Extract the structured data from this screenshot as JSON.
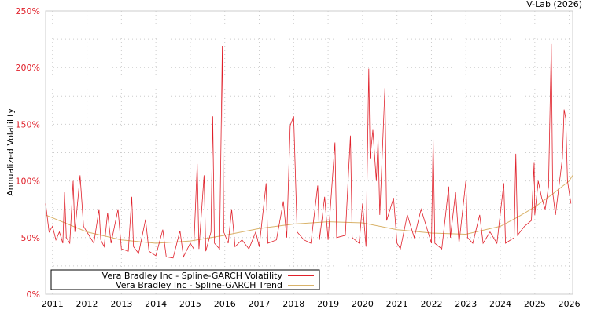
{
  "credit": "V-Lab (2026)",
  "chart_data": {
    "type": "line",
    "title": "",
    "xlabel": "",
    "ylabel": "Annualized Volatility",
    "xlim": [
      2010.8,
      2026.1
    ],
    "ylim": [
      0,
      250
    ],
    "grid": true,
    "legend_placement": "bottom-left",
    "x_ticks": [
      2011,
      2012,
      2013,
      2014,
      2015,
      2016,
      2017,
      2018,
      2019,
      2020,
      2021,
      2022,
      2023,
      2024,
      2025,
      2026
    ],
    "x_tick_labels": [
      "2011",
      "2012",
      "2013",
      "2014",
      "2015",
      "2016",
      "2017",
      "2018",
      "2019",
      "2020",
      "2021",
      "2022",
      "2023",
      "2024",
      "2025",
      "2026"
    ],
    "y_ticks": [
      0,
      50,
      100,
      150,
      200,
      250
    ],
    "y_tick_labels": [
      "0%",
      "50%",
      "100%",
      "150%",
      "200%",
      "250%"
    ],
    "series": [
      {
        "name": "Vera Bradley Inc - Spline-GARCH Volatility",
        "color": "#e0202a",
        "x": [
          2010.8,
          2010.9,
          2011.0,
          2011.1,
          2011.2,
          2011.3,
          2011.35,
          2011.4,
          2011.5,
          2011.6,
          2011.65,
          2011.75,
          2011.8,
          2011.9,
          2012.0,
          2012.1,
          2012.2,
          2012.35,
          2012.4,
          2012.5,
          2012.6,
          2012.7,
          2012.9,
          2013.0,
          2013.2,
          2013.3,
          2013.35,
          2013.5,
          2013.7,
          2013.8,
          2014.0,
          2014.2,
          2014.3,
          2014.5,
          2014.7,
          2014.8,
          2015.0,
          2015.1,
          2015.2,
          2015.25,
          2015.4,
          2015.45,
          2015.6,
          2015.65,
          2015.7,
          2015.85,
          2015.93,
          2015.97,
          2016.1,
          2016.2,
          2016.3,
          2016.5,
          2016.7,
          2016.9,
          2017.0,
          2017.2,
          2017.25,
          2017.5,
          2017.7,
          2017.8,
          2017.9,
          2018.0,
          2018.1,
          2018.3,
          2018.5,
          2018.7,
          2018.75,
          2018.9,
          2019.0,
          2019.2,
          2019.25,
          2019.5,
          2019.65,
          2019.7,
          2019.9,
          2020.0,
          2020.1,
          2020.18,
          2020.22,
          2020.3,
          2020.4,
          2020.45,
          2020.5,
          2020.65,
          2020.7,
          2020.9,
          2021.0,
          2021.1,
          2021.3,
          2021.5,
          2021.7,
          2021.9,
          2022.0,
          2022.05,
          2022.1,
          2022.3,
          2022.5,
          2022.55,
          2022.7,
          2022.8,
          2023.0,
          2023.05,
          2023.2,
          2023.4,
          2023.5,
          2023.7,
          2023.9,
          2024.1,
          2024.15,
          2024.4,
          2024.45,
          2024.5,
          2024.7,
          2024.9,
          2024.98,
          2025.0,
          2025.1,
          2025.2,
          2025.3,
          2025.4,
          2025.48,
          2025.52,
          2025.6,
          2025.8,
          2025.85,
          2025.9,
          2025.95,
          2026.0,
          2026.05
        ],
        "values": [
          80,
          55,
          60,
          48,
          55,
          45,
          90,
          50,
          45,
          100,
          55,
          88,
          105,
          60,
          55,
          50,
          45,
          75,
          48,
          42,
          72,
          45,
          75,
          40,
          38,
          86,
          42,
          36,
          66,
          38,
          34,
          57,
          33,
          32,
          56,
          33,
          45,
          40,
          115,
          40,
          105,
          38,
          55,
          157,
          45,
          40,
          219,
          55,
          45,
          75,
          42,
          48,
          40,
          55,
          42,
          98,
          45,
          48,
          82,
          50,
          149,
          157,
          55,
          48,
          45,
          96,
          48,
          86,
          48,
          134,
          50,
          52,
          140,
          50,
          45,
          80,
          42,
          199,
          120,
          145,
          100,
          137,
          70,
          182,
          65,
          85,
          45,
          40,
          70,
          50,
          75,
          55,
          45,
          137,
          45,
          40,
          95,
          50,
          90,
          45,
          100,
          50,
          45,
          70,
          45,
          55,
          45,
          98,
          45,
          50,
          124,
          52,
          60,
          65,
          116,
          70,
          100,
          85,
          75,
          95,
          221,
          90,
          70,
          120,
          163,
          155,
          100,
          90,
          80
        ]
      },
      {
        "name": "Vera Bradley Inc - Spline-GARCH Trend",
        "color": "#d9b36a",
        "x": [
          2010.8,
          2012,
          2013,
          2014,
          2015,
          2016,
          2017,
          2018,
          2019,
          2020,
          2020.5,
          2021,
          2022,
          2023,
          2024,
          2024.5,
          2025,
          2025.5,
          2026,
          2026.1
        ],
        "values": [
          70,
          55,
          48,
          45,
          47,
          52,
          58,
          62,
          64,
          63,
          60,
          57,
          54,
          53,
          60,
          68,
          77,
          88,
          100,
          105
        ]
      }
    ]
  }
}
